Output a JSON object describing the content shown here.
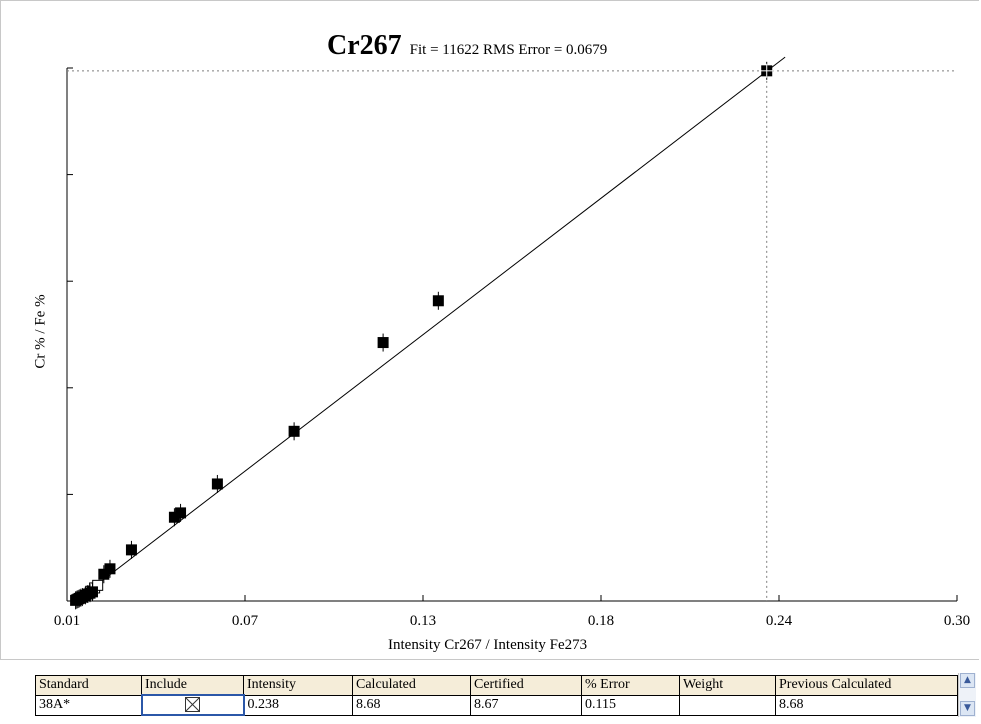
{
  "chart_data": {
    "type": "scatter",
    "title": "Cr267",
    "subtitle": "Fit = 11622 RMS Error = 0.0679",
    "xlabel": "Intensity Cr267 / Intensity Fe273",
    "ylabel": "Cr % / Fe %",
    "xlim": [
      0.01,
      0.3
    ],
    "x_ticks": [
      "0.01",
      "0.07",
      "0.13",
      "0.18",
      "0.24",
      "0.30"
    ],
    "ylim": [
      0,
      0.245
    ],
    "y_tick_count": 6,
    "calibration_line": {
      "x": [
        0.0128,
        0.244
      ],
      "y": [
        0.0,
        0.25
      ]
    },
    "crosshair": {
      "x": 0.238,
      "y": 0.2437
    },
    "points": [
      {
        "x": 0.0128,
        "y": 0.0003
      },
      {
        "x": 0.0132,
        "y": 0.0006
      },
      {
        "x": 0.0136,
        "y": 0.0009
      },
      {
        "x": 0.014,
        "y": 0.0012
      },
      {
        "x": 0.0145,
        "y": 0.0015
      },
      {
        "x": 0.015,
        "y": 0.0018
      },
      {
        "x": 0.016,
        "y": 0.0026
      },
      {
        "x": 0.0168,
        "y": 0.0032
      },
      {
        "x": 0.0175,
        "y": 0.0036
      },
      {
        "x": 0.0183,
        "y": 0.0042
      },
      {
        "x": 0.022,
        "y": 0.0123
      },
      {
        "x": 0.024,
        "y": 0.0148
      },
      {
        "x": 0.031,
        "y": 0.0235
      },
      {
        "x": 0.045,
        "y": 0.0385
      },
      {
        "x": 0.047,
        "y": 0.0405
      },
      {
        "x": 0.059,
        "y": 0.0538
      },
      {
        "x": 0.084,
        "y": 0.078
      },
      {
        "x": 0.113,
        "y": 0.1188
      },
      {
        "x": 0.131,
        "y": 0.138
      },
      {
        "x": 0.238,
        "y": 0.2437
      }
    ],
    "open_points": [
      {
        "x": 0.0178,
        "y": 0.0045
      },
      {
        "x": 0.019,
        "y": 0.006
      },
      {
        "x": 0.02,
        "y": 0.0072
      }
    ],
    "red_points": [
      {
        "x": 0.0126,
        "y": 0.0002
      },
      {
        "x": 0.0134,
        "y": 0.0004
      },
      {
        "x": 0.0142,
        "y": 0.0007
      }
    ]
  },
  "table": {
    "headers": [
      "Standard",
      "Include",
      "Intensity",
      "Calculated",
      "Certified",
      "% Error",
      "Weight",
      "Previous Calculated"
    ],
    "row": {
      "standard": "38A*",
      "include": "",
      "intensity": "0.238",
      "calculated": "8.68",
      "certified": "8.67",
      "error": "0.115",
      "weight": "",
      "previous": "8.68"
    }
  },
  "icons": {
    "scroll_up": "chevron-up-icon",
    "scroll_down": "chevron-down-icon",
    "include_box": "checkbox-checked-icon"
  },
  "colors": {
    "line": "#000000",
    "crosshair": "#7f7f7f",
    "red_marker": "#cc2222",
    "header_bg": "#f5edd9",
    "focus": "#2b57a8"
  }
}
